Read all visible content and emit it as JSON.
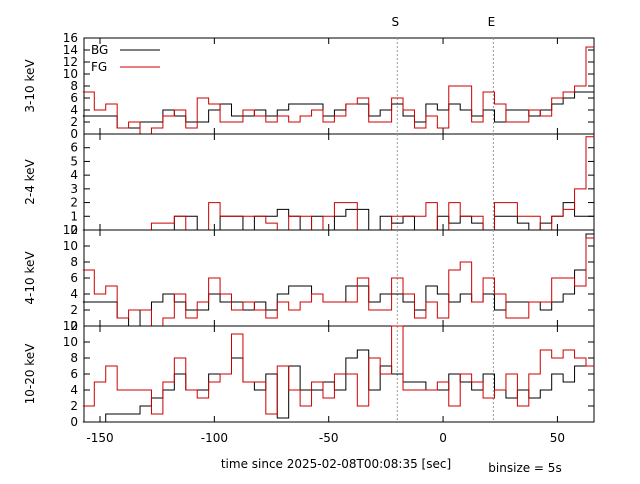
{
  "chart_data": {
    "type": "line",
    "xlabel": "time since 2025-02-08T00:08:35 [sec]",
    "binsize_label": "binsize = 5s",
    "xlim": [
      -157,
      66
    ],
    "x_ticks": [
      -150,
      -100,
      -50,
      0,
      50
    ],
    "colors": {
      "BG": "#000000",
      "FG": "#cc0000",
      "marker": "#999999"
    },
    "legend": {
      "placement": "top-left",
      "entries": [
        "BG",
        "FG"
      ]
    },
    "markers": [
      {
        "label": "S",
        "x": -20
      },
      {
        "label": "E",
        "x": 22
      }
    ],
    "bin_edges": [
      -157.5,
      -152.5,
      -147.5,
      -142.5,
      -137.5,
      -132.5,
      -127.5,
      -122.5,
      -117.5,
      -112.5,
      -107.5,
      -102.5,
      -97.5,
      -92.5,
      -87.5,
      -82.5,
      -77.5,
      -72.5,
      -67.5,
      -62.5,
      -57.5,
      -52.5,
      -47.5,
      -42.5,
      -37.5,
      -32.5,
      -27.5,
      -22.5,
      -17.5,
      -12.5,
      -7.5,
      -2.5,
      2.5,
      7.5,
      12.5,
      17.5,
      22.5,
      27.5,
      32.5,
      37.5,
      42.5,
      47.5,
      52.5,
      57.5,
      62.5
    ],
    "panels": [
      {
        "ylabel": "3-10 keV",
        "ylim": [
          0,
          16
        ],
        "y_ticks": [
          0,
          2,
          4,
          6,
          8,
          10,
          12,
          14,
          16
        ],
        "show_legend": true,
        "series": [
          {
            "name": "BG",
            "values": [
              3,
              3,
              3,
              1,
              1,
              2,
              2,
              4,
              3,
              2,
              2,
              4,
              5,
              3,
              3,
              4,
              3,
              4,
              5,
              5,
              5,
              3,
              4,
              5,
              5,
              3,
              4,
              5,
              3,
              2,
              5,
              4,
              5,
              4,
              3,
              4,
              2,
              4,
              4,
              3,
              4,
              5,
              6,
              7
            ],
            "last": 7
          },
          {
            "name": "FG",
            "values": [
              7,
              4,
              5,
              1,
              2,
              0,
              1,
              3,
              4,
              1,
              6,
              5,
              2,
              2,
              4,
              3,
              2,
              3,
              2,
              3,
              4,
              2,
              3,
              5,
              6,
              2,
              2,
              6,
              4,
              1,
              3,
              1,
              8,
              8,
              2,
              7,
              5,
              2,
              2,
              4,
              3,
              6,
              7,
              8
            ],
            "last": 14.5
          }
        ]
      },
      {
        "ylabel": "2-4 keV",
        "ylim": [
          0,
          7
        ],
        "y_ticks": [
          0,
          1,
          2,
          3,
          4,
          5,
          6
        ],
        "show_legend": false,
        "series": [
          {
            "name": "BG",
            "values": [
              0,
              0,
              0,
              0,
              0,
              0,
              0,
              0,
              1,
              1,
              0,
              0,
              1,
              1,
              0,
              1,
              1,
              1.5,
              1,
              0,
              1,
              0,
              1,
              1.5,
              1.5,
              0,
              1,
              0.5,
              1,
              0,
              0,
              1,
              0.5,
              1,
              0.5,
              0,
              1,
              1,
              0.5,
              0,
              0.5,
              1,
              2,
              1
            ],
            "last": 1
          },
          {
            "name": "FG",
            "values": [
              0,
              0,
              0,
              0,
              0,
              0,
              0.5,
              0.5,
              1,
              0,
              0,
              2,
              1,
              1,
              1,
              1,
              0.5,
              0,
              1,
              1,
              0,
              1,
              2,
              2,
              0,
              0,
              0,
              1,
              1,
              1,
              2,
              0,
              2,
              1,
              1,
              0,
              2,
              2,
              1,
              1,
              0,
              1,
              1.5,
              3
            ],
            "last": 6.8
          }
        ]
      },
      {
        "ylabel": "4-10 keV",
        "ylim": [
          0,
          12
        ],
        "y_ticks": [
          0,
          2,
          4,
          6,
          8,
          10,
          12
        ],
        "show_legend": false,
        "series": [
          {
            "name": "BG",
            "values": [
              3,
              3,
              3,
              1,
              0,
              2,
              3,
              4,
              3,
              2,
              2,
              4,
              3,
              3,
              2,
              3,
              2,
              4,
              5,
              5,
              4,
              3,
              3,
              5,
              5,
              3,
              4,
              4,
              3,
              2,
              5,
              4,
              3,
              4,
              3,
              4,
              2,
              3,
              3,
              3,
              2,
              3,
              4,
              7
            ],
            "last": 11.5
          },
          {
            "name": "FG",
            "values": [
              7,
              4,
              5,
              1,
              2,
              2,
              0,
              1,
              4,
              1,
              3,
              6,
              4,
              2,
              3,
              2,
              1,
              3,
              2,
              3,
              4,
              3,
              3,
              3,
              6,
              2,
              2,
              6,
              4,
              1,
              3,
              1,
              7,
              8,
              3,
              6,
              4,
              1,
              1,
              3,
              3,
              6,
              6,
              5
            ],
            "last": 11
          }
        ]
      },
      {
        "ylabel": "10-20 keV",
        "ylim": [
          0,
          12
        ],
        "y_ticks": [
          0,
          2,
          4,
          6,
          8,
          10,
          12
        ],
        "show_legend": false,
        "series": [
          {
            "name": "BG",
            "values": [
              0,
              0,
              1,
              1,
              1,
              2,
              3,
              4,
              6,
              4,
              4,
              6,
              6,
              8,
              5,
              4,
              6,
              0.5,
              7,
              4,
              4,
              5,
              4,
              8,
              9,
              4,
              7,
              6,
              5,
              5,
              4,
              4,
              6,
              5,
              4,
              6,
              4,
              3,
              4,
              3,
              4,
              6,
              5,
              7
            ],
            "last": 7
          },
          {
            "name": "FG",
            "values": [
              2,
              5,
              7,
              4,
              4,
              4,
              1,
              5,
              8,
              4,
              3,
              5,
              6,
              11,
              5,
              5,
              1,
              7,
              4,
              2,
              5,
              3,
              6,
              6,
              2,
              8,
              6,
              12,
              4,
              4,
              4,
              5,
              2,
              6,
              5,
              3,
              4,
              6,
              2,
              6,
              9,
              8,
              9,
              8
            ],
            "last": 7
          }
        ]
      }
    ]
  }
}
